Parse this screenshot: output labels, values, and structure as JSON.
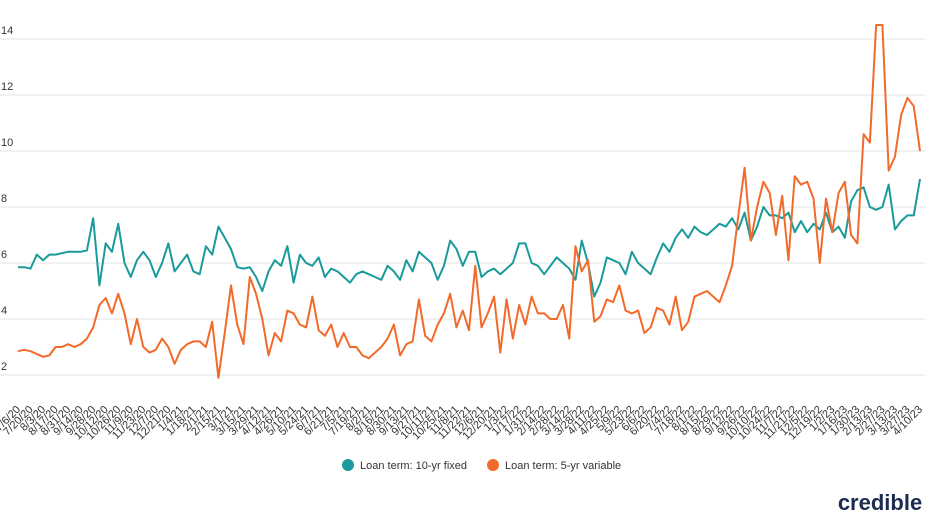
{
  "chart_data": {
    "type": "line",
    "categories": [
      "7/6/20",
      null,
      "7/20/20",
      null,
      "8/3/20",
      null,
      "8/17/20",
      null,
      "8/31/20",
      null,
      "9/14/20",
      null,
      "9/28/20",
      null,
      "10/12/20",
      null,
      "10/26/20",
      null,
      "11/9/20",
      null,
      "11/23/20",
      null,
      "12/7/20",
      null,
      "12/21/20",
      null,
      "1/4/21",
      null,
      "1/18/21",
      null,
      "2/1/21",
      null,
      "2/15/21",
      null,
      "3/1/21",
      null,
      "3/15/21",
      null,
      "3/29/21",
      null,
      "4/12/21",
      null,
      "4/26/21",
      null,
      "5/10/21",
      null,
      "5/24/21",
      null,
      "6/7/21",
      null,
      "6/21/21",
      null,
      "7/5/21",
      null,
      "7/19/21",
      null,
      "8/2/21",
      null,
      "8/16/21",
      null,
      "8/30/21",
      null,
      "9/13/21",
      null,
      "9/27/21",
      null,
      "10/11/21",
      null,
      "10/25/21",
      null,
      "11/8/21",
      null,
      "11/22/21",
      null,
      "12/6/21",
      null,
      "12/20/21",
      null,
      "1/3/22",
      null,
      "1/17/22",
      null,
      "1/31/22",
      null,
      "2/14/22",
      null,
      "2/28/22",
      null,
      "3/14/22",
      null,
      "3/28/22",
      null,
      "4/11/22",
      null,
      "4/25/22",
      null,
      "5/9/22",
      null,
      "5/23/22",
      null,
      "6/6/22",
      null,
      "6/20/22",
      null,
      "7/4/22",
      null,
      "7/18/22",
      null,
      "8/1/22",
      null,
      "8/15/22",
      null,
      "8/29/22",
      null,
      "9/12/22",
      null,
      "9/26/22",
      null,
      "10/10/22",
      null,
      "10/24/22",
      null,
      "11/7/22",
      null,
      "11/21/22",
      null,
      "12/5/22",
      null,
      "12/19/22",
      null,
      "1/2/23",
      null,
      "1/16/23",
      null,
      "1/30/23",
      null,
      "2/13/23",
      null,
      "2/27/23",
      null,
      "3/13/23",
      null,
      "3/27/23",
      null,
      "4/10/23"
    ],
    "series": [
      {
        "name": "Loan term: 10-yr fixed",
        "color": "#1a9a9a",
        "values": [
          5.85,
          5.85,
          5.8,
          6.3,
          6.1,
          6.3,
          6.3,
          6.35,
          6.4,
          6.4,
          6.4,
          6.45,
          7.6,
          5.2,
          6.7,
          6.4,
          7.4,
          6.0,
          5.5,
          6.1,
          6.4,
          6.1,
          5.5,
          6.0,
          6.7,
          5.7,
          6.0,
          6.3,
          5.7,
          5.6,
          6.6,
          6.3,
          7.3,
          6.9,
          6.5,
          5.85,
          5.8,
          5.85,
          5.5,
          5.0,
          5.7,
          6.1,
          5.9,
          6.6,
          5.3,
          6.3,
          6.0,
          5.9,
          6.2,
          5.5,
          5.8,
          5.7,
          5.5,
          5.3,
          5.6,
          5.7,
          5.6,
          5.5,
          5.4,
          5.9,
          5.7,
          5.4,
          6.1,
          5.7,
          6.4,
          6.2,
          6.0,
          5.4,
          5.9,
          6.8,
          6.5,
          5.9,
          6.4,
          6.4,
          5.5,
          5.7,
          5.8,
          5.6,
          5.8,
          6.0,
          6.7,
          6.7,
          6.0,
          5.9,
          5.6,
          5.9,
          6.2,
          6.0,
          5.8,
          5.4,
          6.8,
          6.0,
          4.8,
          5.3,
          6.2,
          6.1,
          6.0,
          5.6,
          6.4,
          6.0,
          5.8,
          5.6,
          6.2,
          6.7,
          6.4,
          6.9,
          7.2,
          6.9,
          7.3,
          7.1,
          7.0,
          7.2,
          7.4,
          7.3,
          7.6,
          7.2,
          7.8,
          6.8,
          7.3,
          8.0,
          7.7,
          7.7,
          7.6,
          7.8,
          7.1,
          7.5,
          7.1,
          7.4,
          7.2,
          7.8,
          7.1,
          7.3,
          6.9,
          8.2,
          8.6,
          8.7,
          8.0,
          7.9,
          8.0,
          8.8,
          7.2,
          7.5,
          7.7,
          7.7,
          9.0
        ]
      },
      {
        "name": "Loan term: 5-yr variable",
        "color": "#f26a2a",
        "values": [
          2.85,
          2.9,
          2.85,
          2.75,
          2.65,
          2.7,
          3.0,
          3.0,
          3.1,
          3.0,
          3.1,
          3.3,
          3.7,
          4.5,
          4.75,
          4.2,
          4.9,
          4.2,
          3.1,
          4.0,
          3.0,
          2.8,
          2.9,
          3.3,
          3.0,
          2.4,
          2.9,
          3.1,
          3.2,
          3.2,
          3.0,
          3.9,
          1.9,
          3.5,
          5.2,
          3.8,
          3.1,
          5.5,
          4.9,
          4.0,
          2.7,
          3.5,
          3.2,
          4.3,
          4.2,
          3.8,
          3.7,
          4.8,
          3.6,
          3.4,
          3.8,
          3.0,
          3.5,
          3.0,
          3.0,
          2.7,
          2.6,
          2.8,
          3.0,
          3.3,
          3.8,
          2.7,
          3.1,
          3.2,
          4.7,
          3.4,
          3.2,
          3.8,
          4.2,
          4.9,
          3.7,
          4.3,
          3.6,
          5.9,
          3.7,
          4.2,
          4.8,
          2.8,
          4.7,
          3.3,
          4.5,
          3.8,
          4.8,
          4.2,
          4.2,
          4.0,
          4.0,
          4.5,
          3.3,
          6.6,
          5.7,
          6.1,
          3.9,
          4.1,
          4.7,
          4.6,
          5.2,
          4.3,
          4.2,
          4.3,
          3.5,
          3.7,
          4.4,
          4.3,
          3.8,
          4.8,
          3.6,
          3.9,
          4.8,
          4.9,
          5.0,
          4.8,
          4.6,
          5.2,
          5.9,
          7.7,
          9.4,
          6.8,
          8.0,
          8.9,
          8.5,
          7.0,
          8.4,
          6.1,
          9.1,
          8.8,
          8.9,
          8.3,
          6.0,
          8.3,
          7.1,
          8.5,
          8.9,
          7.0,
          6.7,
          10.6,
          10.3,
          14.5,
          14.5,
          9.3,
          9.8,
          11.3,
          11.9,
          11.6,
          10.0
        ]
      }
    ],
    "ylim": [
      1,
      15
    ],
    "yticks": [
      2,
      4,
      6,
      8,
      10,
      12,
      14
    ],
    "grid": true,
    "legend": "bottom",
    "brand": "credible"
  }
}
